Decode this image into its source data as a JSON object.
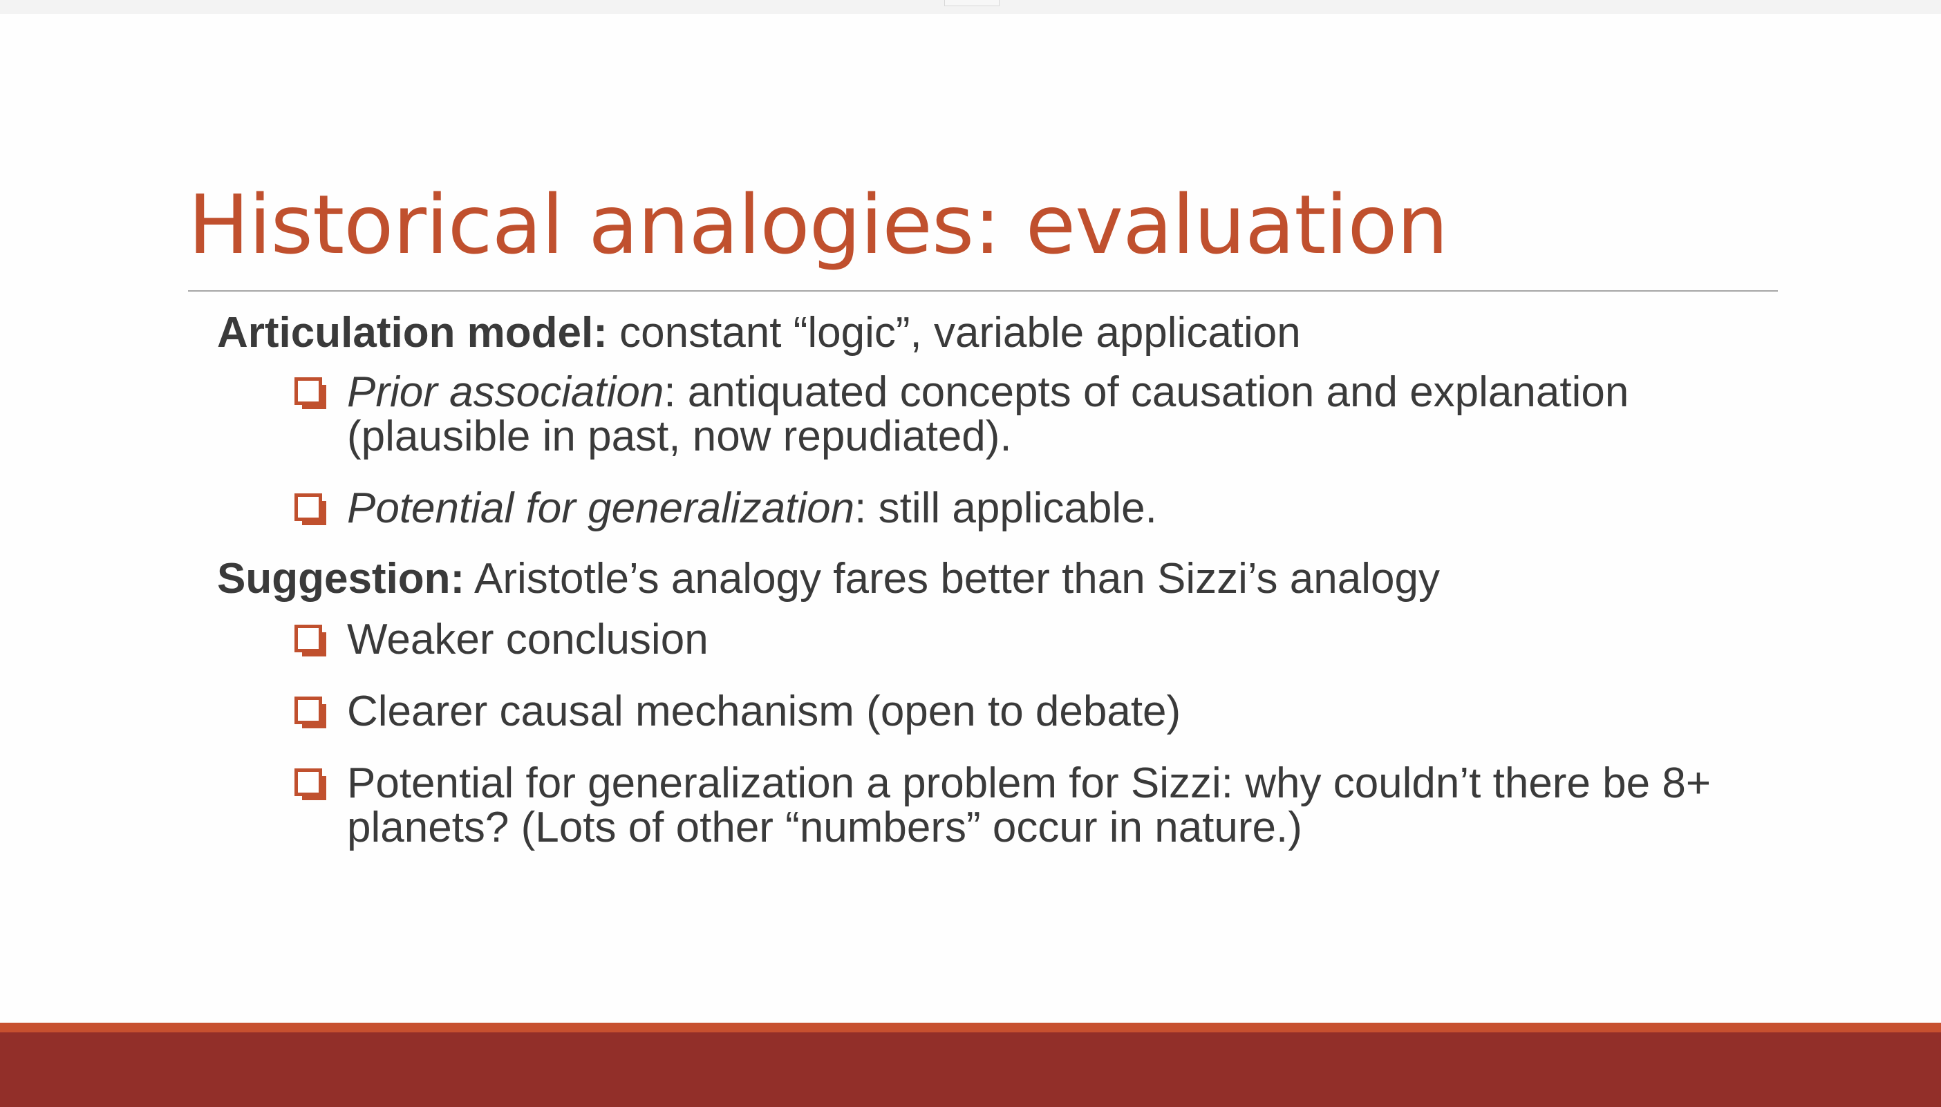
{
  "slide": {
    "title": "Historical analogies: evaluation",
    "accent_color": "#c0502e",
    "footer_color": "#922f29",
    "bullet_icon": "checkbox-square-icon"
  },
  "sections": [
    {
      "label": "Articulation model:",
      "text": " constant “logic”, variable application",
      "bullets": [
        {
          "em": "Prior association",
          "text": ": antiquated concepts of causation and explanation (plausible in past, now repudiated)."
        },
        {
          "em": "Potential for generalization",
          "text": ": still applicable."
        }
      ]
    },
    {
      "label": "Suggestion:",
      "text": " Aristotle’s analogy fares better than Sizzi’s analogy",
      "bullets": [
        {
          "em": "",
          "text": "Weaker conclusion"
        },
        {
          "em": "",
          "text": "Clearer causal mechanism (open to debate)"
        },
        {
          "em": "",
          "text": "Potential for generalization a problem for Sizzi: why couldn’t there be 8+ planets? (Lots of other “numbers” occur in nature.)"
        }
      ]
    }
  ]
}
